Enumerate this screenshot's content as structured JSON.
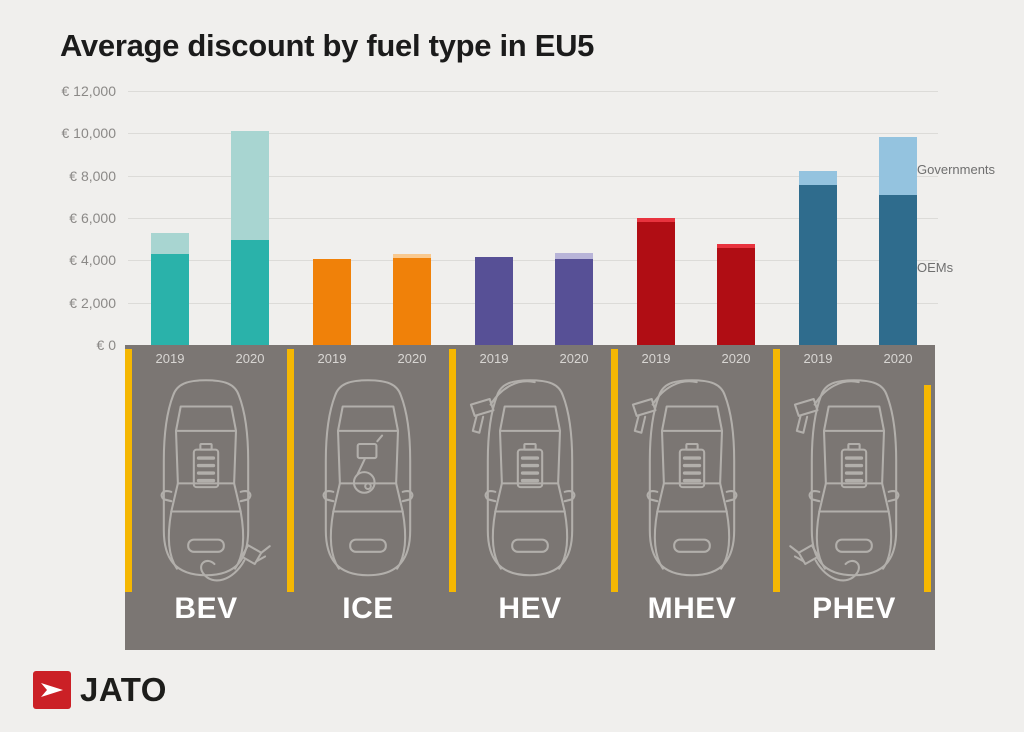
{
  "title": "Average discount by fuel type in EU5",
  "background_color": "#f0efed",
  "panel_color": "#7b7673",
  "divider_color": "#f5b702",
  "legend": {
    "governments_label": "Governments",
    "oems_label": "OEMs"
  },
  "y_axis": {
    "ticks": [
      "€ 12,000",
      "€ 10,000",
      "€ 8,000",
      "€ 6,000",
      "€ 4,000",
      "€ 2,000",
      "€ 0"
    ]
  },
  "brand": {
    "name": "JATO",
    "logo_color": "#cb2026"
  },
  "chart_data": {
    "type": "bar",
    "stacked": true,
    "currency": "EUR",
    "ylim": [
      0,
      12000
    ],
    "grid": true,
    "legend_position": "right",
    "series_names": [
      "OEMs",
      "Governments"
    ],
    "years": [
      "2019",
      "2020"
    ],
    "groups": [
      {
        "label": "BEV",
        "oem_color": "#2ab2aa",
        "gov_color": "#a8d5d1",
        "features": [
          "battery",
          "charging-plug"
        ],
        "bars": [
          {
            "year": "2019",
            "oems": 4300,
            "governments": 1000,
            "total": 5300
          },
          {
            "year": "2020",
            "oems": 4950,
            "governments": 5150,
            "total": 10100
          }
        ]
      },
      {
        "label": "ICE",
        "oem_color": "#f08109",
        "gov_color": "#f9c98f",
        "features": [
          "engine"
        ],
        "bars": [
          {
            "year": "2019",
            "oems": 4050,
            "governments": 0,
            "total": 4050
          },
          {
            "year": "2020",
            "oems": 4100,
            "governments": 200,
            "total": 4300
          }
        ]
      },
      {
        "label": "HEV",
        "oem_color": "#575096",
        "gov_color": "#b8b4d8",
        "features": [
          "battery",
          "fuel-nozzle"
        ],
        "bars": [
          {
            "year": "2019",
            "oems": 4150,
            "governments": 0,
            "total": 4150
          },
          {
            "year": "2020",
            "oems": 4050,
            "governments": 300,
            "total": 4350
          }
        ]
      },
      {
        "label": "MHEV",
        "oem_color": "#b00d14",
        "gov_color": "#e8333e",
        "features": [
          "battery",
          "fuel-nozzle"
        ],
        "bars": [
          {
            "year": "2019",
            "oems": 5800,
            "governments": 200,
            "total": 6000
          },
          {
            "year": "2020",
            "oems": 4600,
            "governments": 200,
            "total": 4800
          }
        ]
      },
      {
        "label": "PHEV",
        "oem_color": "#2f6c8d",
        "gov_color": "#94c3df",
        "features": [
          "battery",
          "fuel-nozzle",
          "charging-plug"
        ],
        "bars": [
          {
            "year": "2019",
            "oems": 7550,
            "governments": 650,
            "total": 8200
          },
          {
            "year": "2020",
            "oems": 7100,
            "governments": 2750,
            "total": 9850
          }
        ]
      }
    ]
  }
}
